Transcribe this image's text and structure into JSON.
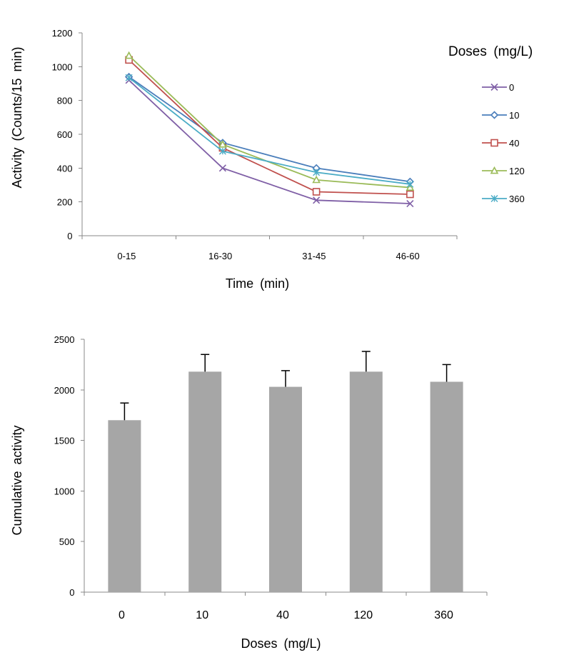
{
  "chart_data": [
    {
      "type": "line",
      "ylabel": "Activity (Counts/15 min) ",
      "xlabel": "Time (min) ",
      "legend_title": "Doses (mg/L) ",
      "legend_position": "right",
      "categories": [
        "0-15 ",
        "16-30 ",
        "31-45 ",
        "46-60 "
      ],
      "y_ticks": [
        "0 ",
        "200 ",
        "400 ",
        "600 ",
        "800 ",
        "1000 ",
        "1200 "
      ],
      "ylim": [
        0,
        1200
      ],
      "series": [
        {
          "name": "0 ",
          "marker": "x",
          "color": "#7f5fa6",
          "values": [
            920,
            400,
            210,
            190
          ]
        },
        {
          "name": "10 ",
          "marker": "diamond",
          "color": "#4a7ebb",
          "values": [
            940,
            550,
            400,
            320
          ]
        },
        {
          "name": "40 ",
          "marker": "square",
          "color": "#c0504d",
          "values": [
            1040,
            520,
            260,
            245
          ]
        },
        {
          "name": "120 ",
          "marker": "triangle",
          "color": "#9bbb59",
          "values": [
            1065,
            540,
            330,
            285
          ]
        },
        {
          "name": "360 ",
          "marker": "star",
          "color": "#4bacc6",
          "values": [
            935,
            500,
            375,
            305
          ]
        }
      ]
    },
    {
      "type": "bar",
      "ylabel": "Cumulative activity ",
      "xlabel": "Doses (mg/L) ",
      "categories": [
        "0 ",
        "10 ",
        "40 ",
        "120 ",
        "360 "
      ],
      "y_ticks": [
        "0 ",
        "500 ",
        "1000 ",
        "1500 ",
        "2000 ",
        "2500 "
      ],
      "ylim": [
        0,
        2500
      ],
      "values": [
        1700,
        2180,
        2030,
        2180,
        2080
      ],
      "error": [
        170,
        170,
        160,
        200,
        170
      ],
      "bar_color": "#a6a6a6"
    }
  ]
}
